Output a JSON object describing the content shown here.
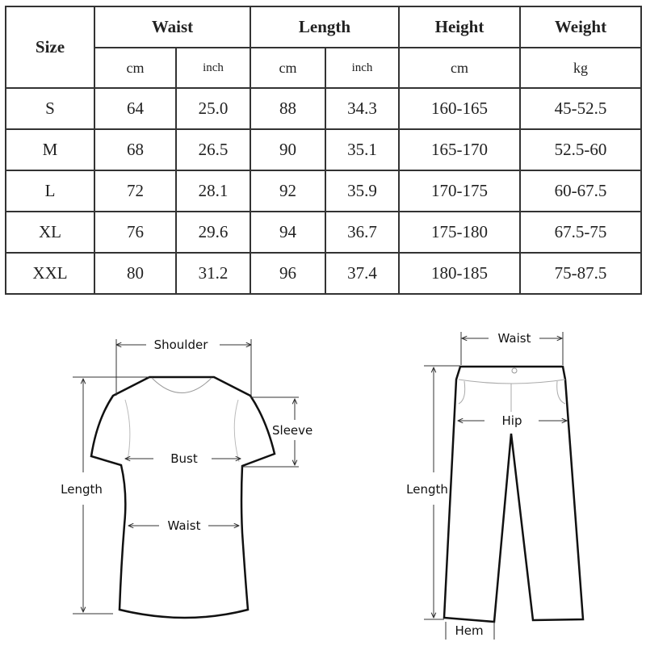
{
  "table": {
    "size_header": "Size",
    "groups": [
      {
        "label": "Waist",
        "units": [
          "cm",
          "inch"
        ]
      },
      {
        "label": "Length",
        "units": [
          "cm",
          "inch"
        ]
      },
      {
        "label": "Height",
        "units": [
          "cm"
        ]
      },
      {
        "label": "Weight",
        "units": [
          "kg"
        ]
      }
    ],
    "rows": [
      [
        "S",
        "64",
        "25.0",
        "88",
        "34.3",
        "160-165",
        "45-52.5"
      ],
      [
        "M",
        "68",
        "26.5",
        "90",
        "35.1",
        "165-170",
        "52.5-60"
      ],
      [
        "L",
        "72",
        "28.1",
        "92",
        "35.9",
        "170-175",
        "60-67.5"
      ],
      [
        "XL",
        "76",
        "29.6",
        "94",
        "36.7",
        "175-180",
        "67.5-75"
      ],
      [
        "XXL",
        "80",
        "31.2",
        "96",
        "37.4",
        "180-185",
        "75-87.5"
      ]
    ]
  },
  "shirt_diagram": {
    "shoulder": "Shoulder",
    "sleeve": "Sleeve",
    "bust": "Bust",
    "length": "Length",
    "waist": "Waist"
  },
  "pants_diagram": {
    "waist": "Waist",
    "hip": "Hip",
    "length": "Length",
    "hem": "Hem"
  }
}
